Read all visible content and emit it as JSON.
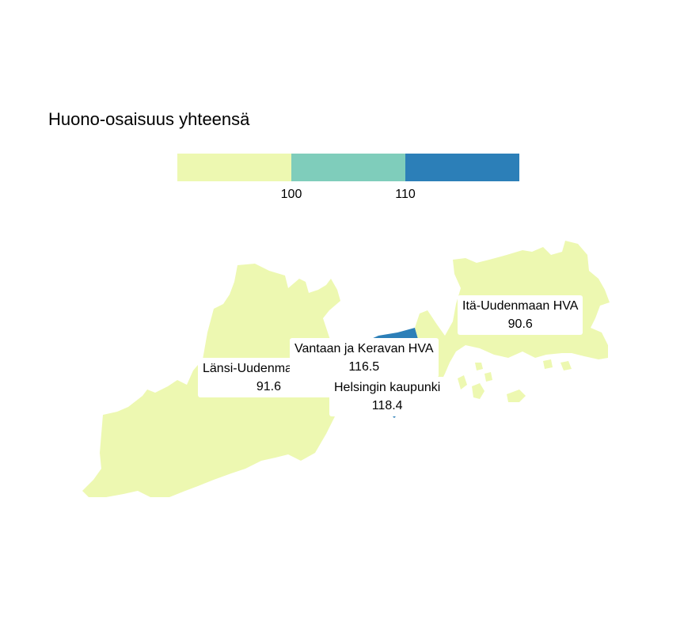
{
  "title": "Huono-osaisuus yhteensä",
  "legend": {
    "colors": [
      "#edf8b1",
      "#7fcdbb",
      "#2c7fb8"
    ],
    "breaks": [
      "100",
      "110"
    ]
  },
  "regions": [
    {
      "name": "Länsi-Uudenmaan HVA",
      "value": "91.6",
      "color": "#edf8b1"
    },
    {
      "name": "Vantaan ja Keravan HVA",
      "value": "116.5",
      "color": "#2c7fb8"
    },
    {
      "name": "Helsingin kaupunki",
      "value": "118.4",
      "color": "#2c7fb8"
    },
    {
      "name": "Itä-Uudenmaan HVA",
      "value": "90.6",
      "color": "#edf8b1"
    }
  ]
}
